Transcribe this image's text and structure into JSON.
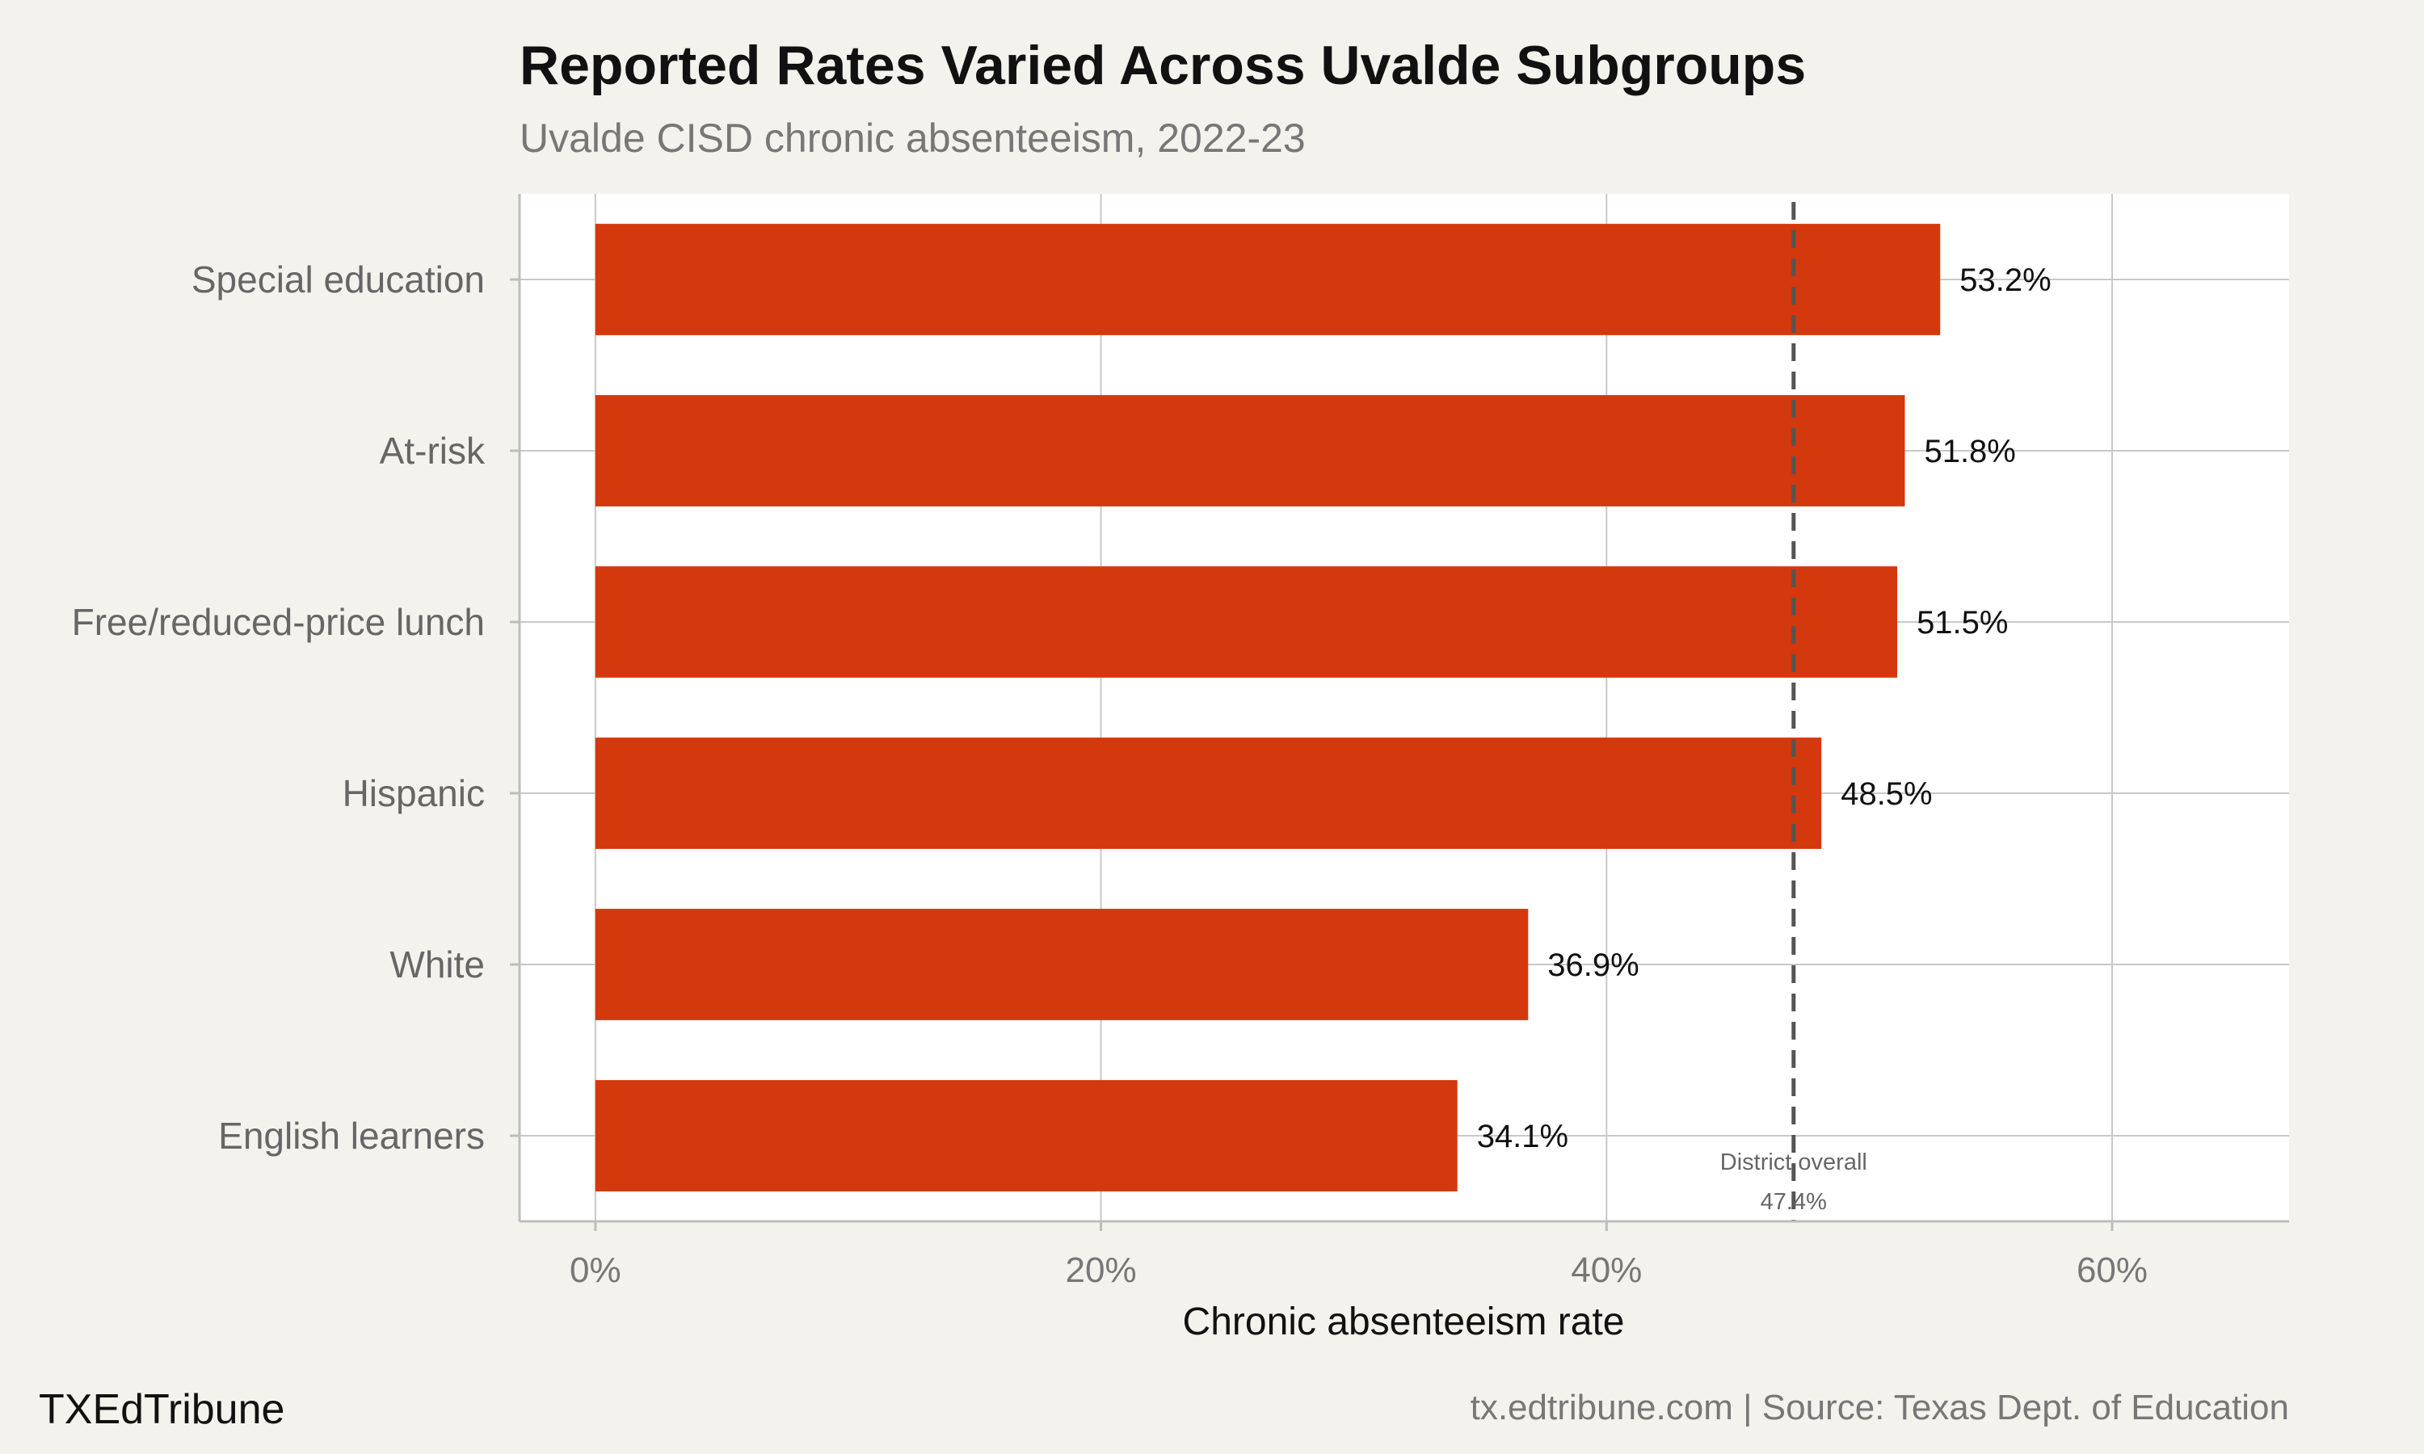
{
  "chart_data": {
    "type": "bar",
    "orientation": "horizontal",
    "title": "Reported Rates Varied Across Uvalde Subgroups",
    "subtitle": "Uvalde CISD chronic absenteeism, 2022-23",
    "xlabel": "Chronic absenteeism rate",
    "ylabel": "",
    "categories": [
      "Special education",
      "At-risk",
      "Free/reduced-price lunch",
      "Hispanic",
      "White",
      "English learners"
    ],
    "values": [
      53.2,
      51.8,
      51.5,
      48.5,
      36.9,
      34.1
    ],
    "value_labels": [
      "53.2%",
      "51.8%",
      "51.5%",
      "48.5%",
      "36.9%",
      "34.1%"
    ],
    "xlim": [
      -3,
      67
    ],
    "xticks": [
      0,
      20,
      40,
      60
    ],
    "xtick_labels": [
      "0%",
      "20%",
      "40%",
      "60%"
    ],
    "reference_line": {
      "value": 47.4,
      "label": "District overall",
      "value_label": "47.4%",
      "style": "dashed"
    },
    "grid": true,
    "colors": {
      "bar": "#d4380d",
      "panel": "#ffffff",
      "background": "#f4f2ed",
      "grid": "#c8c8c8",
      "reference_line": "#555555"
    }
  },
  "footer": {
    "brand": "TXEdTribune",
    "source": "tx.edtribune.com | Source: Texas Dept. of Education"
  }
}
